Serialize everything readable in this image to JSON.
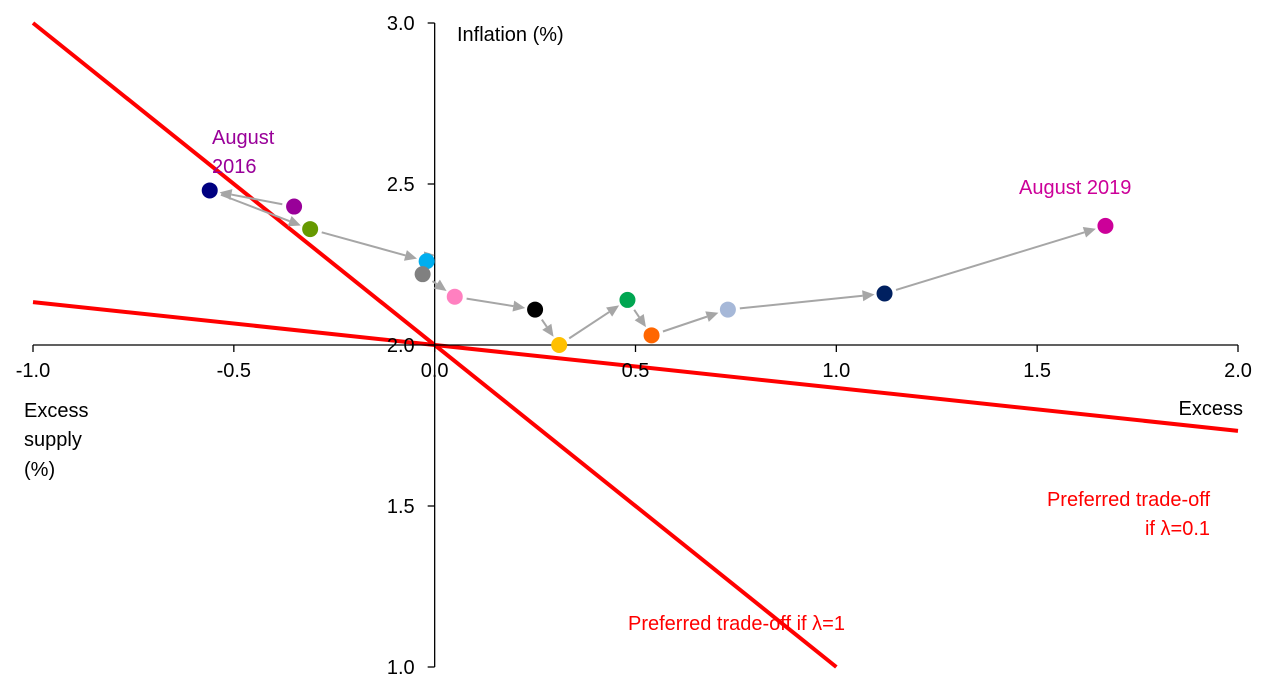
{
  "chart_data": {
    "type": "scatter",
    "xlim": [
      -1.0,
      2.0
    ],
    "ylim": [
      1.0,
      3.0
    ],
    "x_ticks": [
      -1.0,
      -0.5,
      0.0,
      0.5,
      1.0,
      1.5,
      2.0
    ],
    "x_tick_labels": [
      "-1.0",
      "-0.5",
      "0.0",
      "0.5",
      "1.0",
      "1.5",
      "2.0"
    ],
    "y_ticks": [
      1.0,
      1.5,
      2.0,
      2.5,
      3.0
    ],
    "y_tick_labels": [
      "1.0",
      "1.5",
      "2.0",
      "2.5",
      "3.0"
    ],
    "ylabel": "Inflation (%)",
    "xlabel_left": [
      "Excess",
      "supply",
      "(%)"
    ],
    "xlabel_right": "Excess",
    "grid": false,
    "points": [
      {
        "x": -0.35,
        "y": 2.43,
        "color": "#990099"
      },
      {
        "x": -0.56,
        "y": 2.48,
        "color": "#000080"
      },
      {
        "x": -0.31,
        "y": 2.36,
        "color": "#669900"
      },
      {
        "x": -0.02,
        "y": 2.26,
        "color": "#00aeef"
      },
      {
        "x": -0.03,
        "y": 2.22,
        "color": "#808080"
      },
      {
        "x": 0.05,
        "y": 2.15,
        "color": "#ff80c0"
      },
      {
        "x": 0.25,
        "y": 2.11,
        "color": "#000000"
      },
      {
        "x": 0.31,
        "y": 2.0,
        "color": "#ffc000"
      },
      {
        "x": 0.48,
        "y": 2.14,
        "color": "#00a651"
      },
      {
        "x": 0.54,
        "y": 2.03,
        "color": "#ff6600"
      },
      {
        "x": 0.73,
        "y": 2.11,
        "color": "#a6b8d8"
      },
      {
        "x": 1.12,
        "y": 2.16,
        "color": "#002060"
      },
      {
        "x": 1.67,
        "y": 2.37,
        "color": "#cc0099"
      }
    ],
    "arrow_color": "#a6a6a6",
    "trade_off_lines": [
      {
        "label": "Preferred trade-off if λ=1",
        "slope": -1.0,
        "intercept": 2.0,
        "color": "#ff0000"
      },
      {
        "label_lines": [
          "Preferred trade-off",
          "if λ=0.1"
        ],
        "slope": -0.1333,
        "intercept": 2.0,
        "color": "#ff0000"
      }
    ],
    "annotations": [
      {
        "text_lines": [
          "August",
          "2016"
        ],
        "color": "#990099"
      },
      {
        "text_lines": [
          "August 2019"
        ],
        "color": "#cc0099"
      }
    ]
  }
}
